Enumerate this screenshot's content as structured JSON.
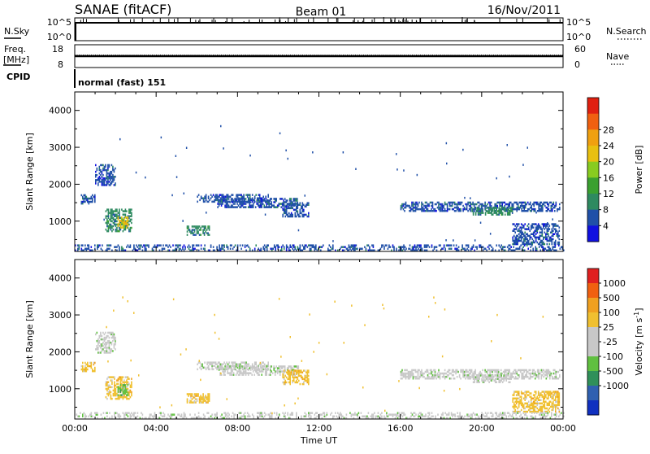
{
  "header": {
    "station": "SANAE (fitACF)",
    "beam": "Beam 01",
    "date": "16/Nov/2011"
  },
  "summary": {
    "nsky_label": "N.Sky",
    "nsky_ticks": [
      "10^5",
      "10^0"
    ],
    "nsearch_label": "N.Search",
    "freq_label_line1": "Freq.",
    "freq_label_line2": "[MHz]",
    "freq_ticks": [
      "18",
      "8"
    ],
    "nave_label": "Nave",
    "nave_ticks": [
      "60",
      "0"
    ],
    "cpid_label": "CPID",
    "cpid_text": "normal (fast) 151"
  },
  "chart_data": [
    {
      "type": "heatmap",
      "name_panel": "power",
      "xlabel": "",
      "ylabel": "Slant Range [km]",
      "xlim": [
        0,
        24
      ],
      "ylim": [
        180,
        4500
      ],
      "y_ticks": [
        1000,
        2000,
        3000,
        4000
      ],
      "colorbar_label": "Power [dB]",
      "colorbar_ticks": [
        "4",
        "8",
        "12",
        "16",
        "20",
        "24",
        "28"
      ],
      "colorbar_colors": [
        "#1010e0",
        "#2050a8",
        "#2e8a60",
        "#3aa030",
        "#88cc20",
        "#e8c010",
        "#f0a010",
        "#f06010",
        "#e02010"
      ],
      "regions": [
        {
          "t": [
            0.3,
            1.0
          ],
          "r": [
            1450,
            1700
          ],
          "c": 1
        },
        {
          "t": [
            1.0,
            2.0
          ],
          "r": [
            1950,
            2500
          ],
          "c": 1
        },
        {
          "t": [
            1.5,
            2.8
          ],
          "r": [
            700,
            1300
          ],
          "c": 2
        },
        {
          "t": [
            2.1,
            2.6
          ],
          "r": [
            800,
            1100
          ],
          "c": 5
        },
        {
          "t": [
            5.5,
            6.6
          ],
          "r": [
            600,
            850
          ],
          "c": 2
        },
        {
          "t": [
            6.0,
            9.5
          ],
          "r": [
            1500,
            1700
          ],
          "c": 1
        },
        {
          "t": [
            7.0,
            11.0
          ],
          "r": [
            1350,
            1600
          ],
          "c": 1
        },
        {
          "t": [
            10.2,
            11.5
          ],
          "r": [
            1100,
            1500
          ],
          "c": 1
        },
        {
          "t": [
            16.0,
            23.8
          ],
          "r": [
            1250,
            1500
          ],
          "c": 1
        },
        {
          "t": [
            19.5,
            21.5
          ],
          "r": [
            1150,
            1350
          ],
          "c": 2
        },
        {
          "t": [
            21.5,
            23.8
          ],
          "r": [
            350,
            900
          ],
          "c": 1
        },
        {
          "t": [
            0.0,
            24.0
          ],
          "r": [
            180,
            320
          ],
          "c": 1
        }
      ]
    },
    {
      "type": "heatmap",
      "name_panel": "velocity",
      "xlabel": "Time UT",
      "ylabel": "Slant Range [km]",
      "xlim": [
        0,
        24
      ],
      "ylim": [
        180,
        4500
      ],
      "x_ticks": [
        "00:00",
        "04:00",
        "08:00",
        "12:00",
        "16:00",
        "20:00",
        "00:00"
      ],
      "y_ticks": [
        1000,
        2000,
        3000,
        4000
      ],
      "colorbar_label": "Velocity [m s^-1]",
      "colorbar_ticks": [
        "1000",
        "500",
        "100",
        "25",
        "-25",
        "-100",
        "-500",
        "-1000"
      ],
      "colorbar_colors": [
        "#1030c0",
        "#3060b0",
        "#30905a",
        "#60c040",
        "#c8c8c8",
        "#c8c8c8",
        "#f0c030",
        "#f0a020",
        "#f06010",
        "#e02020"
      ],
      "regions": [
        {
          "t": [
            0.3,
            1.0
          ],
          "r": [
            1450,
            1700
          ],
          "c": 6
        },
        {
          "t": [
            1.0,
            2.0
          ],
          "r": [
            1950,
            2500
          ],
          "c": 4
        },
        {
          "t": [
            1.5,
            2.8
          ],
          "r": [
            700,
            1300
          ],
          "c": 6
        },
        {
          "t": [
            2.1,
            2.6
          ],
          "r": [
            800,
            1100
          ],
          "c": 3
        },
        {
          "t": [
            5.5,
            6.6
          ],
          "r": [
            600,
            850
          ],
          "c": 6
        },
        {
          "t": [
            6.0,
            9.5
          ],
          "r": [
            1500,
            1700
          ],
          "c": 4
        },
        {
          "t": [
            7.0,
            11.0
          ],
          "r": [
            1350,
            1600
          ],
          "c": 4
        },
        {
          "t": [
            10.2,
            11.5
          ],
          "r": [
            1100,
            1500
          ],
          "c": 6
        },
        {
          "t": [
            16.0,
            23.8
          ],
          "r": [
            1250,
            1500
          ],
          "c": 4
        },
        {
          "t": [
            19.5,
            21.5
          ],
          "r": [
            1150,
            1350
          ],
          "c": 4
        },
        {
          "t": [
            21.5,
            23.8
          ],
          "r": [
            350,
            900
          ],
          "c": 6
        },
        {
          "t": [
            0.0,
            24.0
          ],
          "r": [
            180,
            320
          ],
          "c": 4
        }
      ]
    }
  ]
}
